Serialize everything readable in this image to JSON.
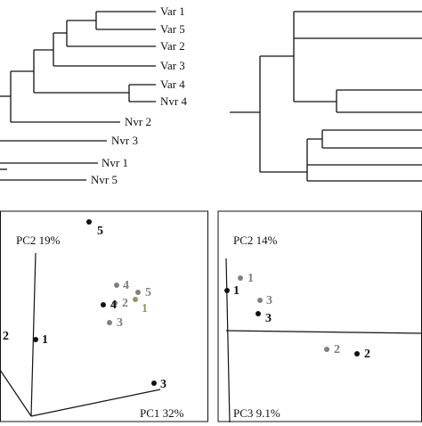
{
  "colors": {
    "ink": "#111111",
    "gray": "#808080",
    "olive": "#9c9060"
  },
  "tree_left": {
    "leaves": [
      "Var 1",
      "Var 5",
      "Var 2",
      "Var 3",
      "Var 4",
      "Nvr 4",
      "Nvr 2",
      "Nvr 3",
      "Nvr 1",
      "Nvr 5"
    ]
  },
  "pca_left": {
    "axis_y_label": "PC2 19%",
    "axis_x_label": "PC1 32%",
    "points": [
      {
        "label": "5",
        "group": "ink"
      },
      {
        "label": "4",
        "group": "gray"
      },
      {
        "label": "5",
        "group": "gray"
      },
      {
        "label": "2",
        "group": "gray"
      },
      {
        "label": "4",
        "group": "ink"
      },
      {
        "label": "1",
        "group": "olive"
      },
      {
        "label": "3",
        "group": "gray"
      },
      {
        "label": "2",
        "group": "ink"
      },
      {
        "label": "1",
        "group": "ink"
      },
      {
        "label": "3",
        "group": "ink"
      }
    ]
  },
  "pca_right": {
    "axis_y_label": "PC2 14%",
    "axis_x_label": "PC3 9.1%",
    "points": [
      {
        "label": "1",
        "group": "gray"
      },
      {
        "label": "1",
        "group": "ink"
      },
      {
        "label": "3",
        "group": "gray"
      },
      {
        "label": "3",
        "group": "ink"
      },
      {
        "label": "2",
        "group": "gray"
      },
      {
        "label": "2",
        "group": "ink"
      }
    ]
  }
}
